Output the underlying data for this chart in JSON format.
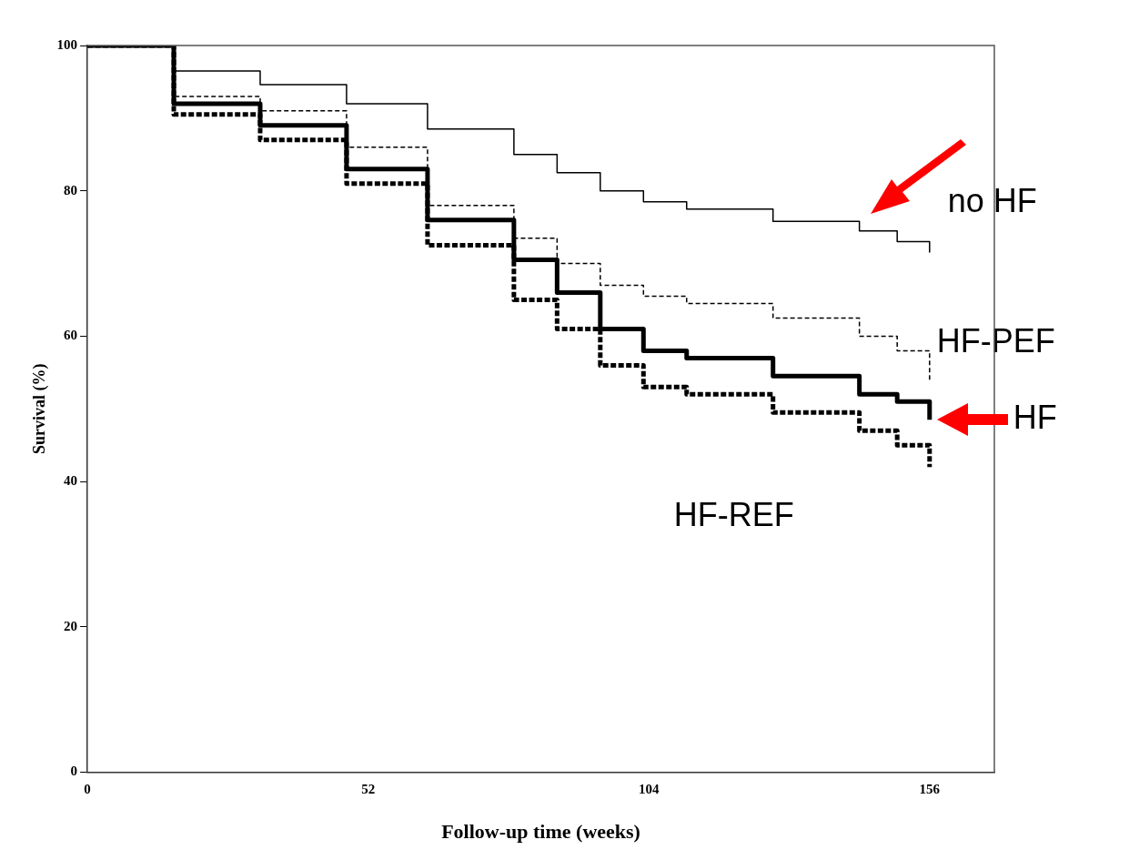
{
  "chart_data": {
    "type": "step",
    "xlabel": "Follow-up time (weeks)",
    "ylabel": "Survival (%)",
    "xlim": [
      0,
      168
    ],
    "xticks": [
      0,
      52,
      104,
      156
    ],
    "ylim": [
      0,
      100
    ],
    "yticks": [
      0,
      20,
      40,
      60,
      80,
      100
    ],
    "grid": false,
    "legend": false,
    "x": [
      0,
      3,
      16,
      32,
      48,
      63,
      79,
      87,
      95,
      103,
      111,
      127,
      143,
      150,
      156
    ],
    "series": [
      {
        "name": "no HF",
        "color": "#000000",
        "line_style": "solid",
        "values": [
          100,
          100,
          96.5,
          94.6,
          92,
          88.5,
          85,
          82.5,
          80,
          78.5,
          77.5,
          75.8,
          74.5,
          73,
          71.5
        ]
      },
      {
        "name": "HF-PEF",
        "color": "#000000",
        "line_style": "dashed",
        "values": [
          100,
          100,
          93,
          91,
          86,
          78,
          73.5,
          70,
          67,
          65.5,
          64.5,
          62.5,
          60,
          58,
          54
        ]
      },
      {
        "name": "HF",
        "color": "#000000",
        "line_style": "solid",
        "values": [
          100,
          100,
          92,
          89,
          83,
          76,
          70.5,
          66,
          61,
          58,
          57,
          54.5,
          52,
          51,
          48.5
        ]
      },
      {
        "name": "HF-REF",
        "color": "#000000",
        "line_style": "dotted",
        "values": [
          100,
          100,
          90.5,
          87,
          81,
          72.5,
          65,
          61,
          56,
          53,
          52,
          49.5,
          47,
          45,
          42
        ]
      }
    ]
  }
}
